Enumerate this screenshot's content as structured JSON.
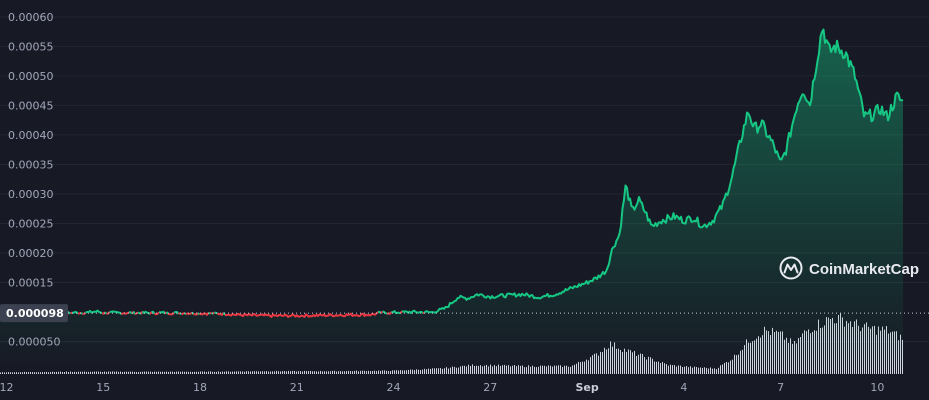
{
  "chart_data": {
    "type": "line",
    "colors": {
      "up": "#16c784",
      "down": "#ea3943",
      "volume": "#e0e4ef",
      "background": "#171924"
    },
    "y_ticks": [
      "0.00060",
      "0.00055",
      "0.00050",
      "0.00045",
      "0.00040",
      "0.00035",
      "0.00030",
      "0.00025",
      "0.00020",
      "0.00015",
      "0.000050"
    ],
    "ylim": [
      0.0,
      0.00061
    ],
    "current_price_label": "0.000098",
    "current_price": 9.8e-05,
    "x_ticks": [
      {
        "label": "12",
        "bold": false
      },
      {
        "label": "15",
        "bold": false
      },
      {
        "label": "18",
        "bold": false
      },
      {
        "label": "21",
        "bold": false
      },
      {
        "label": "24",
        "bold": false
      },
      {
        "label": "27",
        "bold": false
      },
      {
        "label": "Sep",
        "bold": true
      },
      {
        "label": "4",
        "bold": false
      },
      {
        "label": "7",
        "bold": false
      },
      {
        "label": "10",
        "bold": false
      }
    ],
    "x_tick_days": [
      12,
      15,
      18,
      21,
      24,
      27,
      30,
      33,
      36,
      39
    ],
    "xlim": [
      11.8,
      40.6
    ],
    "series": [
      {
        "values": [
          [
            11.8,
            9.85e-05
          ],
          [
            13.0,
            9.85e-05
          ],
          [
            14.5,
            9.9e-05
          ],
          [
            14.8,
            0.000101
          ],
          [
            15.0,
            9.85e-05
          ],
          [
            16.5,
            9.85e-05
          ],
          [
            17.5,
            9.83e-05
          ],
          [
            18.0,
            9.78e-05
          ],
          [
            18.8,
            9.7e-05
          ],
          [
            19.2,
            9.5e-05
          ],
          [
            19.8,
            9.4e-05
          ],
          [
            20.5,
            9.35e-05
          ],
          [
            21.5,
            9.4e-05
          ],
          [
            22.5,
            9.5e-05
          ],
          [
            23.3,
            9.55e-05
          ],
          [
            23.6,
            9.85e-05
          ],
          [
            24.5,
            0.0001
          ],
          [
            25.2,
            9.95e-05
          ],
          [
            25.6,
            0.000106
          ],
          [
            26.0,
            0.000125
          ],
          [
            26.3,
            0.000123
          ],
          [
            26.6,
            0.00013
          ],
          [
            27.0,
            0.000126
          ],
          [
            27.5,
            0.000128
          ],
          [
            28.0,
            0.00013
          ],
          [
            28.5,
            0.000125
          ],
          [
            29.0,
            0.00013
          ],
          [
            29.5,
            0.00014
          ],
          [
            30.0,
            0.00015
          ],
          [
            30.3,
            0.000158
          ],
          [
            30.6,
            0.00017
          ],
          [
            30.8,
            0.00021
          ],
          [
            31.0,
            0.00023
          ],
          [
            31.2,
            0.000315
          ],
          [
            31.4,
            0.00027
          ],
          [
            31.6,
            0.00029
          ],
          [
            31.8,
            0.00027
          ],
          [
            32.0,
            0.000245
          ],
          [
            32.3,
            0.000255
          ],
          [
            32.7,
            0.000262
          ],
          [
            33.0,
            0.000255
          ],
          [
            33.3,
            0.00026
          ],
          [
            33.6,
            0.000245
          ],
          [
            33.9,
            0.000255
          ],
          [
            34.2,
            0.00028
          ],
          [
            34.5,
            0.00033
          ],
          [
            34.8,
            0.0004
          ],
          [
            35.0,
            0.00044
          ],
          [
            35.2,
            0.00041
          ],
          [
            35.4,
            0.00042
          ],
          [
            35.6,
            0.0004
          ],
          [
            35.8,
            0.00038
          ],
          [
            36.0,
            0.00035
          ],
          [
            36.2,
            0.00038
          ],
          [
            36.5,
            0.00045
          ],
          [
            36.7,
            0.00048
          ],
          [
            36.9,
            0.00045
          ],
          [
            37.1,
            0.00052
          ],
          [
            37.3,
            0.000585
          ],
          [
            37.5,
            0.00054
          ],
          [
            37.7,
            0.00055
          ],
          [
            38.0,
            0.00054
          ],
          [
            38.3,
            0.0005
          ],
          [
            38.6,
            0.00043
          ],
          [
            38.9,
            0.000435
          ],
          [
            39.1,
            0.000445
          ],
          [
            39.3,
            0.00043
          ],
          [
            39.6,
            0.000465
          ],
          [
            39.8,
            0.000455
          ]
        ]
      }
    ],
    "volume": {
      "max": 1,
      "values": [
        [
          11.8,
          0.03
        ],
        [
          14.0,
          0.04
        ],
        [
          16.0,
          0.04
        ],
        [
          18.0,
          0.04
        ],
        [
          20.0,
          0.05
        ],
        [
          22.0,
          0.05
        ],
        [
          24.0,
          0.06
        ],
        [
          25.5,
          0.1
        ],
        [
          26.5,
          0.16
        ],
        [
          28.0,
          0.14
        ],
        [
          29.5,
          0.14
        ],
        [
          30.3,
          0.35
        ],
        [
          30.7,
          0.54
        ],
        [
          31.2,
          0.42
        ],
        [
          31.8,
          0.3
        ],
        [
          32.5,
          0.16
        ],
        [
          33.3,
          0.12
        ],
        [
          34.0,
          0.1
        ],
        [
          34.5,
          0.28
        ],
        [
          35.0,
          0.6
        ],
        [
          35.5,
          0.78
        ],
        [
          36.0,
          0.7
        ],
        [
          36.4,
          0.52
        ],
        [
          36.8,
          0.78
        ],
        [
          37.2,
          0.9
        ],
        [
          37.6,
          1.0
        ],
        [
          38.0,
          0.96
        ],
        [
          38.5,
          0.84
        ],
        [
          38.9,
          0.8
        ],
        [
          39.3,
          0.78
        ],
        [
          39.8,
          0.62
        ]
      ]
    },
    "watermark": "CoinMarketCap"
  }
}
